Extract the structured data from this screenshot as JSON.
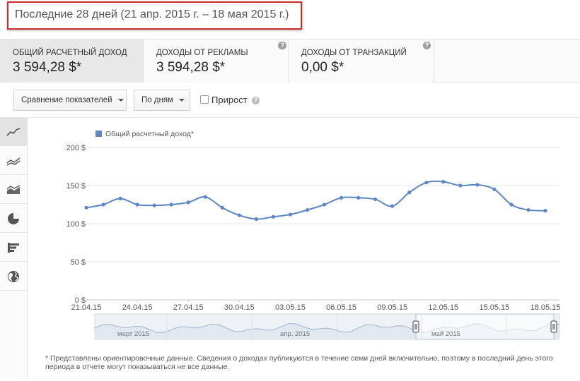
{
  "header": {
    "period": "Последние 28 дней (21 апр. 2015 г. – 18 мая 2015 г.)"
  },
  "metrics": [
    {
      "label": "ОБЩИЙ РАСЧЕТНЫЙ ДОХОД",
      "value": "3 594,28 $*",
      "help": "?"
    },
    {
      "label": "ДОХОДЫ ОТ РЕКЛАМЫ",
      "value": "3 594,28 $*",
      "help": "?"
    },
    {
      "label": "ДОХОДЫ ОТ ТРАНЗАКЦИЙ",
      "value": "0,00 $*",
      "help": "?"
    }
  ],
  "toolbar": {
    "compare_label": "Сравнение показателей",
    "granularity_label": "По дням",
    "growth_label": "Прирост",
    "help": "?"
  },
  "side_views": [
    {
      "icon": "line-chart-icon"
    },
    {
      "icon": "multi-line-chart-icon"
    },
    {
      "icon": "stacked-area-chart-icon"
    },
    {
      "icon": "pie-chart-icon"
    },
    {
      "icon": "bar-chart-icon"
    },
    {
      "icon": "globe-icon"
    }
  ],
  "chart_data": {
    "type": "line",
    "legend": "Общий расчетный доход*",
    "color": "#5b87c4",
    "y_ticks": [
      "0 $",
      "50 $",
      "100 $",
      "150 $",
      "200 $"
    ],
    "ylim": [
      0,
      200
    ],
    "x_labels": [
      "21.04.15",
      "24.04.15",
      "27.04.15",
      "30.04.15",
      "03.05.15",
      "06.05.15",
      "09.05.15",
      "12.05.15",
      "15.05.15",
      "18.05.15"
    ],
    "x": [
      "21.04.15",
      "22.04.15",
      "23.04.15",
      "24.04.15",
      "25.04.15",
      "26.04.15",
      "27.04.15",
      "28.04.15",
      "29.04.15",
      "30.04.15",
      "01.05.15",
      "02.05.15",
      "03.05.15",
      "04.05.15",
      "05.05.15",
      "06.05.15",
      "07.05.15",
      "08.05.15",
      "09.05.15",
      "10.05.15",
      "11.05.15",
      "12.05.15",
      "13.05.15",
      "14.05.15",
      "15.05.15",
      "16.05.15",
      "17.05.15",
      "18.05.15"
    ],
    "values": [
      121,
      125,
      133,
      125,
      124,
      125,
      128,
      135,
      121,
      111,
      106,
      109,
      112,
      118,
      125,
      134,
      134,
      132,
      123,
      141,
      154,
      155,
      150,
      151,
      145,
      125,
      118,
      117
    ],
    "navigator_labels": [
      "март 2015",
      "апр. 2015",
      "май 2015"
    ]
  },
  "footnote": "* Представлены ориентировочные данные. Сведения о доходах публикуются в течение семи дней включительно, поэтому в последний день этого периода в отчете могут показываться не все данные."
}
